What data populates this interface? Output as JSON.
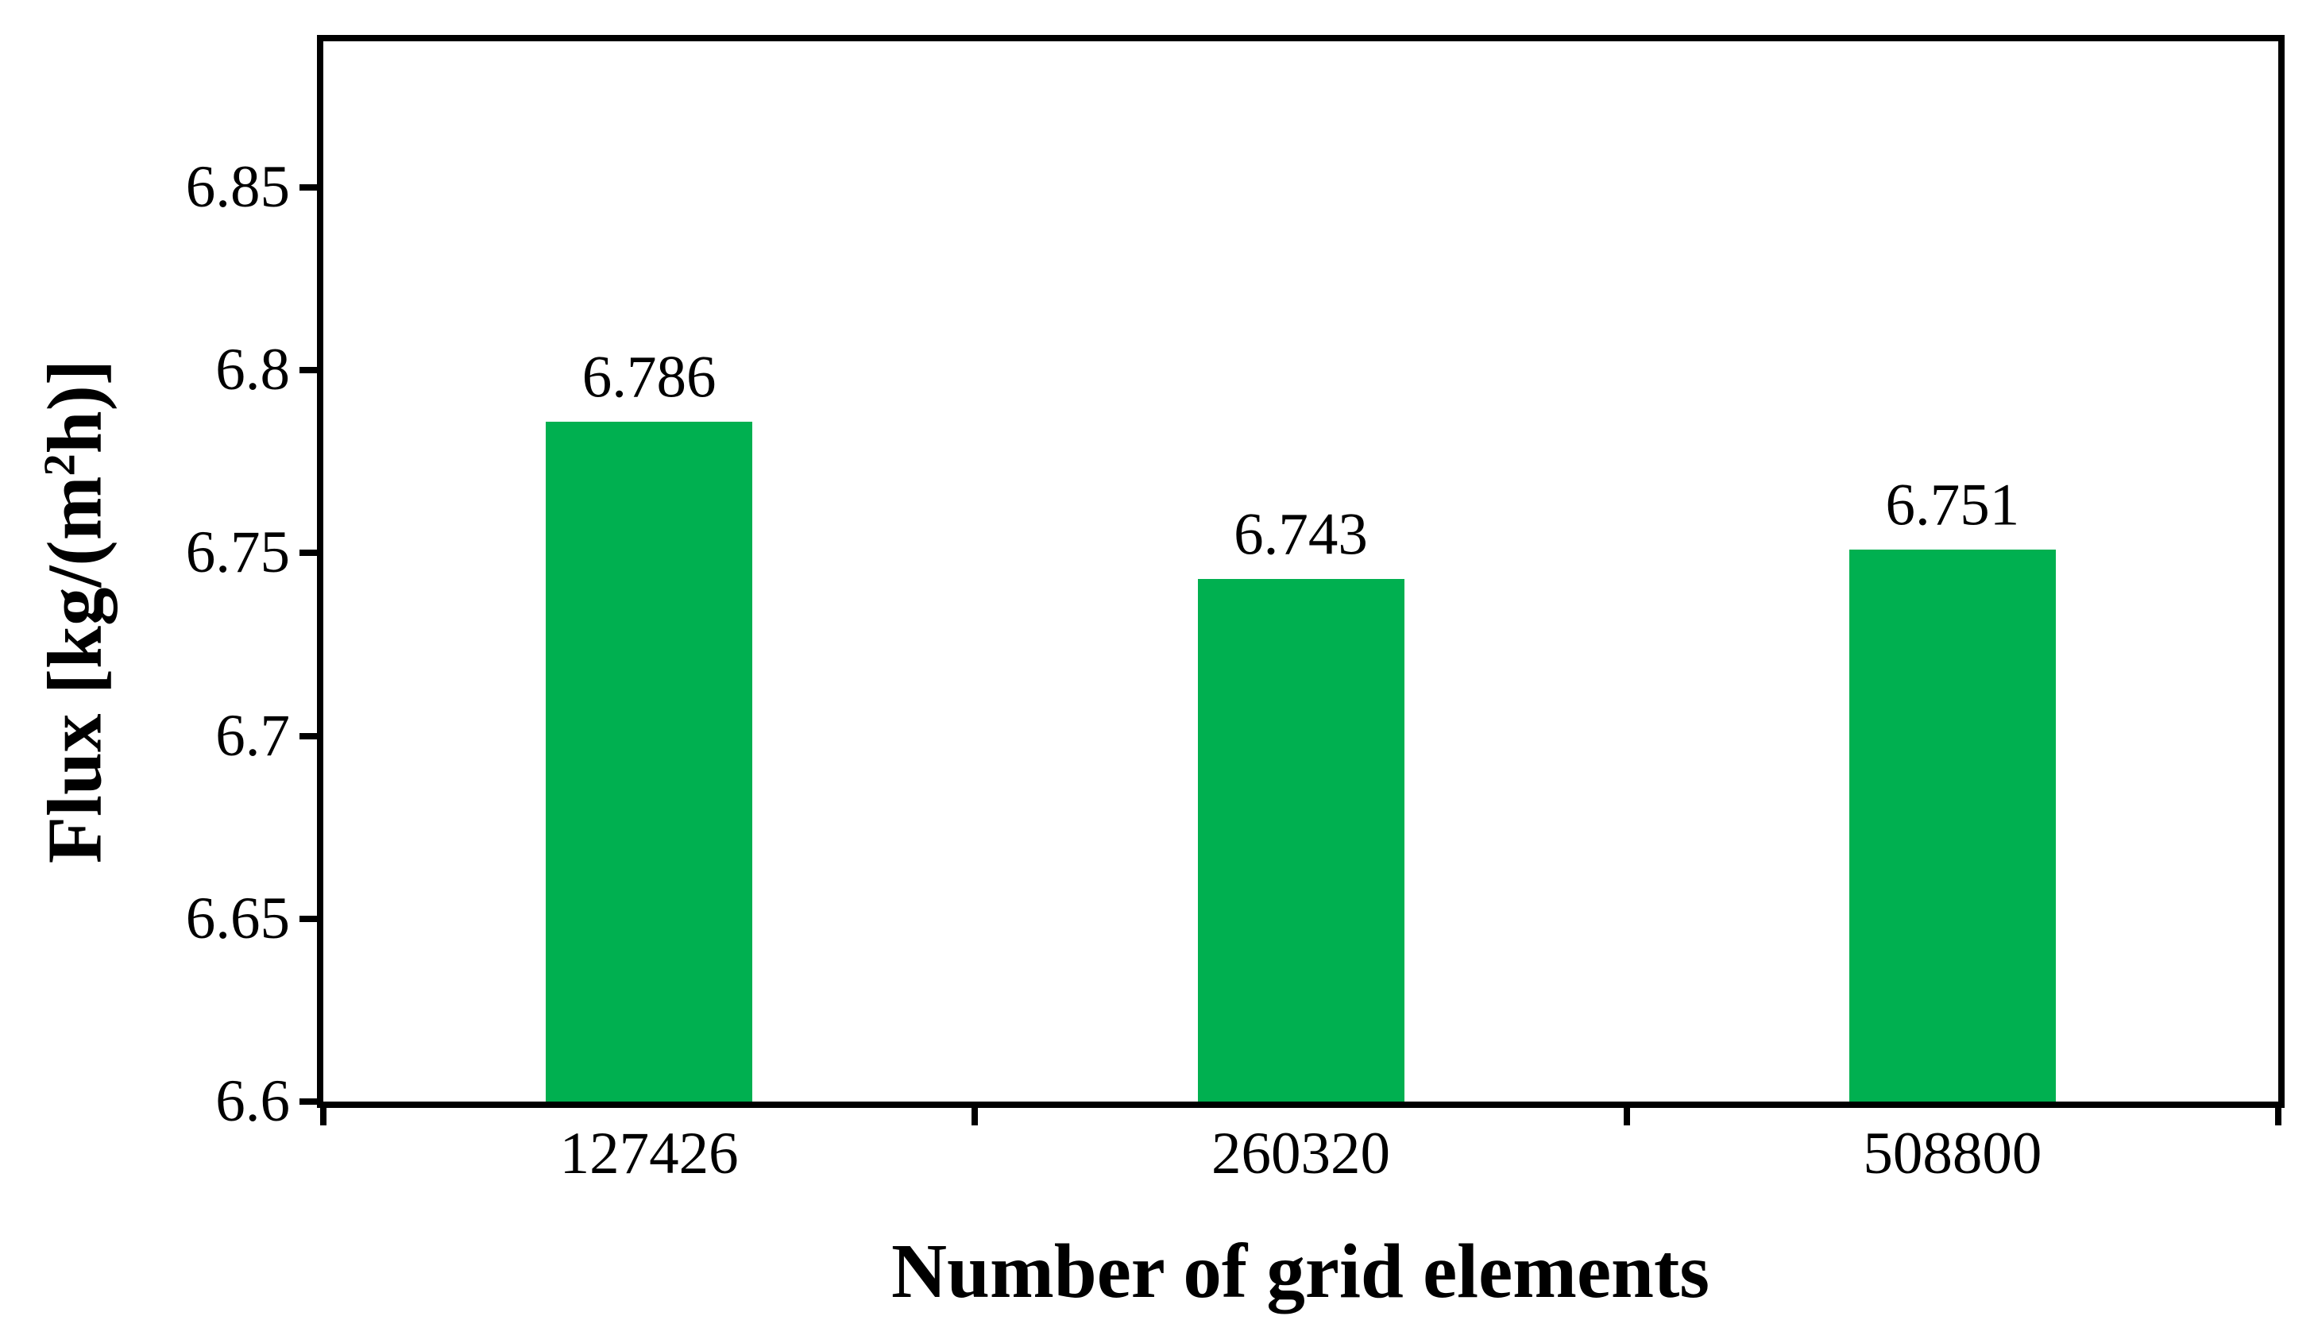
{
  "chart_data": {
    "type": "bar",
    "title": "",
    "xlabel": "Number of grid elements",
    "ylabel": "Flux [kg/(m²h)]",
    "ylabel_parts": {
      "pre": "Flux [kg/(m",
      "sup": "2",
      "post": "h)]"
    },
    "categories": [
      "127426",
      "260320",
      "508800"
    ],
    "values": [
      6.786,
      6.743,
      6.751
    ],
    "bar_labels": [
      "6.786",
      "6.743",
      "6.751"
    ],
    "yticks": [
      6.6,
      6.65,
      6.7,
      6.75,
      6.8,
      6.85
    ],
    "ytick_labels": [
      "6.6",
      "6.65",
      "6.7",
      "6.75",
      "6.8",
      "6.85"
    ],
    "ylim": [
      6.6,
      6.89
    ],
    "ytick_step": 0.05,
    "bar_color": "#00B050",
    "axis_color": "#000000",
    "text_color": "#000000",
    "background_color": "#FFFFFF",
    "grid": false,
    "legend": "none",
    "plot_border": true,
    "tick_style": "outside",
    "x_tick_placement": "category-boundaries"
  }
}
